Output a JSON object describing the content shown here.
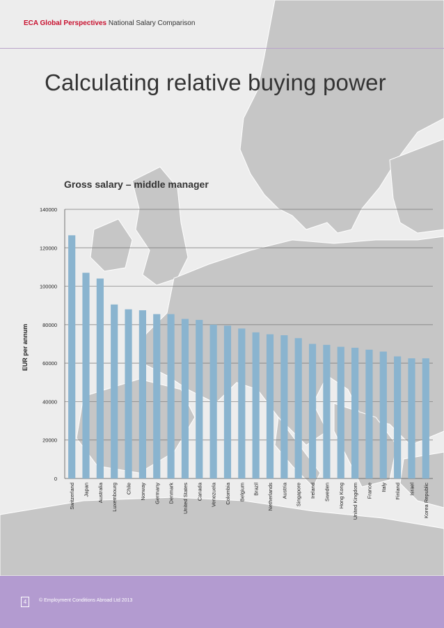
{
  "header": {
    "brand": "ECA Global Perspectives",
    "subtitle": "National Salary Comparison"
  },
  "page_title": "Calculating relative buying power",
  "footer": {
    "page_number": "4",
    "copyright": "© Employment Conditions Abroad Ltd 2013"
  },
  "colors": {
    "bar": "#8ab4cf",
    "map_land": "#c6c6c6",
    "map_water": "#ededed",
    "footer": "#b39bd0",
    "brand": "#c8102e"
  },
  "chart_data": {
    "type": "bar",
    "title": "Gross salary – middle manager",
    "xlabel": "",
    "ylabel": "EUR per annum",
    "ylim": [
      0,
      140000
    ],
    "yticks": [
      0,
      20000,
      40000,
      60000,
      80000,
      100000,
      120000,
      140000
    ],
    "grid": true,
    "categories": [
      "Switzerland",
      "Japan",
      "Australia",
      "Luxembourg",
      "Chile",
      "Norway",
      "Germany",
      "Denmark",
      "United States",
      "Canada",
      "Venezuela",
      "Colombia",
      "Belgium",
      "Brazil",
      "Netherlands",
      "Austria",
      "Singapore",
      "Ireland",
      "Sweden",
      "Hong Kong",
      "United Kingdom",
      "France",
      "Italy",
      "Finland",
      "Israel",
      "Korea Republic"
    ],
    "values": [
      126500,
      107000,
      104000,
      90500,
      88000,
      87500,
      85500,
      85500,
      83000,
      82500,
      80000,
      79500,
      78000,
      76000,
      75000,
      74500,
      73000,
      70000,
      69500,
      68500,
      68000,
      67000,
      66000,
      63500,
      62500,
      62500
    ]
  }
}
